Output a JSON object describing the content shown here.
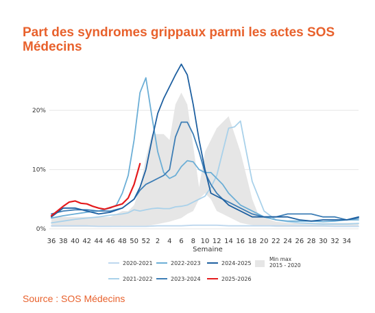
{
  "title": "Part des syndromes grippaux parmi les actes SOS Médecins",
  "source": "Source : SOS Médecins",
  "chart_data": {
    "type": "line",
    "xlabel": "Semaine",
    "ylabel": "",
    "x_tick_labels": [
      "36",
      "38",
      "40",
      "42",
      "44",
      "46",
      "48",
      "50",
      "52",
      "2",
      "4",
      "6",
      "8",
      "10",
      "12",
      "14",
      "16",
      "18",
      "20",
      "22",
      "24",
      "26",
      "28",
      "30",
      "32",
      "34"
    ],
    "ylim": [
      0,
      28
    ],
    "y_ticks": [
      0,
      10,
      20
    ],
    "y_tick_labels": [
      "0%",
      "10%",
      "20%"
    ],
    "grid": "horizontal",
    "legend_position": "bottom",
    "band": {
      "name": "Min max\n2015 - 2020",
      "color": "#e6e6e6",
      "x": [
        0,
        2,
        4,
        6,
        8,
        10,
        12,
        13,
        14,
        15,
        16,
        17,
        18,
        19,
        20,
        21,
        22,
        23,
        24,
        25,
        26,
        27,
        28,
        29,
        30,
        31,
        32,
        33,
        34,
        35,
        36,
        37,
        38,
        40,
        42,
        44,
        46,
        48,
        50,
        52
      ],
      "upper": [
        2,
        2,
        2,
        2,
        2,
        2,
        3,
        3,
        4,
        7,
        12,
        16,
        16,
        16,
        15,
        21,
        23,
        21,
        14,
        7,
        13,
        15,
        17,
        18,
        19,
        16,
        13,
        9,
        5,
        2.5,
        2,
        1.5,
        1.2,
        1,
        1,
        1,
        1,
        1,
        1,
        1
      ],
      "lower": [
        0.3,
        0.3,
        0.3,
        0.3,
        0.3,
        0.3,
        0.5,
        0.5,
        0.5,
        0.5,
        0.5,
        0.6,
        0.8,
        1,
        1.2,
        1.5,
        1.8,
        2.5,
        3,
        5,
        6,
        5,
        3,
        2.5,
        2,
        1.5,
        1,
        0.8,
        0.6,
        0.5,
        0.4,
        0.4,
        0.3,
        0.3,
        0.3,
        0.3,
        0.3,
        0.3,
        0.3,
        0.3
      ]
    },
    "series": [
      {
        "name": "2020-2021",
        "color": "#BDD7EE",
        "x": [
          0,
          2,
          4,
          6,
          8,
          10,
          12,
          14,
          16,
          18,
          20,
          22,
          24,
          26,
          28,
          30,
          32,
          34,
          36,
          38,
          40,
          42,
          44,
          46,
          48,
          50,
          52
        ],
        "y": [
          0.5,
          0.5,
          0.5,
          0.5,
          0.4,
          0.4,
          0.4,
          0.4,
          0.4,
          0.5,
          0.5,
          0.5,
          0.6,
          0.6,
          0.6,
          0.5,
          0.5,
          0.5,
          0.5,
          0.5,
          0.5,
          0.5,
          0.5,
          0.5,
          0.4,
          0.4,
          0.4
        ]
      },
      {
        "name": "2021-2022",
        "color": "#A9D1EA",
        "x": [
          0,
          2,
          4,
          6,
          8,
          10,
          12,
          13,
          14,
          15,
          16,
          17,
          18,
          19,
          20,
          21,
          22,
          23,
          24,
          25,
          26,
          27,
          28,
          29,
          30,
          31,
          32,
          33,
          34,
          36,
          38,
          40,
          42,
          44,
          46,
          48,
          50,
          52
        ],
        "y": [
          1,
          1.3,
          1.6,
          1.8,
          2,
          2.3,
          2.5,
          2.7,
          3.2,
          3,
          3.2,
          3.4,
          3.5,
          3.4,
          3.4,
          3.7,
          3.8,
          4,
          4.5,
          5,
          5.5,
          7,
          9,
          13,
          17,
          17.2,
          18.2,
          13,
          8,
          3,
          1.5,
          1.2,
          1,
          0.9,
          0.8,
          0.8,
          0.8,
          0.9
        ]
      },
      {
        "name": "2022-2023",
        "color": "#6BAED6",
        "x": [
          0,
          2,
          4,
          6,
          8,
          10,
          11,
          12,
          13,
          14,
          15,
          16,
          17,
          18,
          19,
          20,
          21,
          22,
          23,
          24,
          25,
          26,
          27,
          28,
          29,
          30,
          31,
          32,
          34,
          36,
          38,
          40,
          42,
          44,
          46,
          48,
          50,
          52
        ],
        "y": [
          1.8,
          2.2,
          2.5,
          2.8,
          3,
          3.5,
          4,
          6,
          9,
          15,
          23,
          25.5,
          19,
          13,
          9.5,
          8.5,
          9,
          10.5,
          11.5,
          11.3,
          10,
          9.5,
          9.5,
          8.5,
          7.5,
          6,
          5,
          4,
          3,
          2,
          1.5,
          1.3,
          1.3,
          1.3,
          1.2,
          1.3,
          1.5,
          1.5
        ]
      },
      {
        "name": "2023-2024",
        "color": "#3C7DB5",
        "x": [
          0,
          2,
          4,
          6,
          8,
          10,
          12,
          14,
          15,
          16,
          17,
          18,
          19,
          20,
          21,
          22,
          23,
          24,
          25,
          26,
          27,
          28,
          29,
          30,
          31,
          32,
          34,
          36,
          38,
          40,
          42,
          44,
          46,
          48,
          50,
          52
        ],
        "y": [
          2.5,
          3,
          3.2,
          3.2,
          3,
          3,
          3.5,
          5,
          6.5,
          7.5,
          8,
          8.5,
          9,
          10,
          15.5,
          18,
          18,
          16,
          13,
          9.5,
          7.5,
          6,
          5,
          4.5,
          4,
          3.5,
          2.5,
          2,
          2,
          2.5,
          2.5,
          2.5,
          2,
          2,
          1.5,
          1.8
        ]
      },
      {
        "name": "2024-2025",
        "color": "#1D5FA0",
        "x": [
          0,
          2,
          4,
          6,
          8,
          10,
          12,
          14,
          15,
          16,
          17,
          18,
          19,
          20,
          21,
          22,
          23,
          24,
          25,
          26,
          27,
          28,
          29,
          30,
          31,
          32,
          34,
          36,
          38,
          40,
          42,
          44,
          46,
          48,
          50,
          52
        ],
        "y": [
          2,
          3.5,
          3.5,
          3,
          2.5,
          2.8,
          3.5,
          5,
          7,
          10,
          15,
          19.5,
          22,
          24,
          26,
          27.8,
          26,
          21,
          15,
          10,
          6,
          5.5,
          5,
          4,
          3.5,
          3,
          2,
          2,
          2,
          2,
          1.5,
          1.3,
          1.5,
          1.5,
          1.5,
          2
        ]
      },
      {
        "name": "2025-2026",
        "color": "#E41A1C",
        "x": [
          0,
          1,
          2,
          3,
          4,
          5,
          6,
          7,
          8,
          9,
          10,
          11,
          12,
          13,
          14,
          15
        ],
        "y": [
          2.2,
          3,
          3.8,
          4.5,
          4.7,
          4.3,
          4.2,
          3.8,
          3.5,
          3.3,
          3.6,
          3.9,
          4.2,
          5.2,
          7.5,
          11
        ]
      }
    ]
  }
}
